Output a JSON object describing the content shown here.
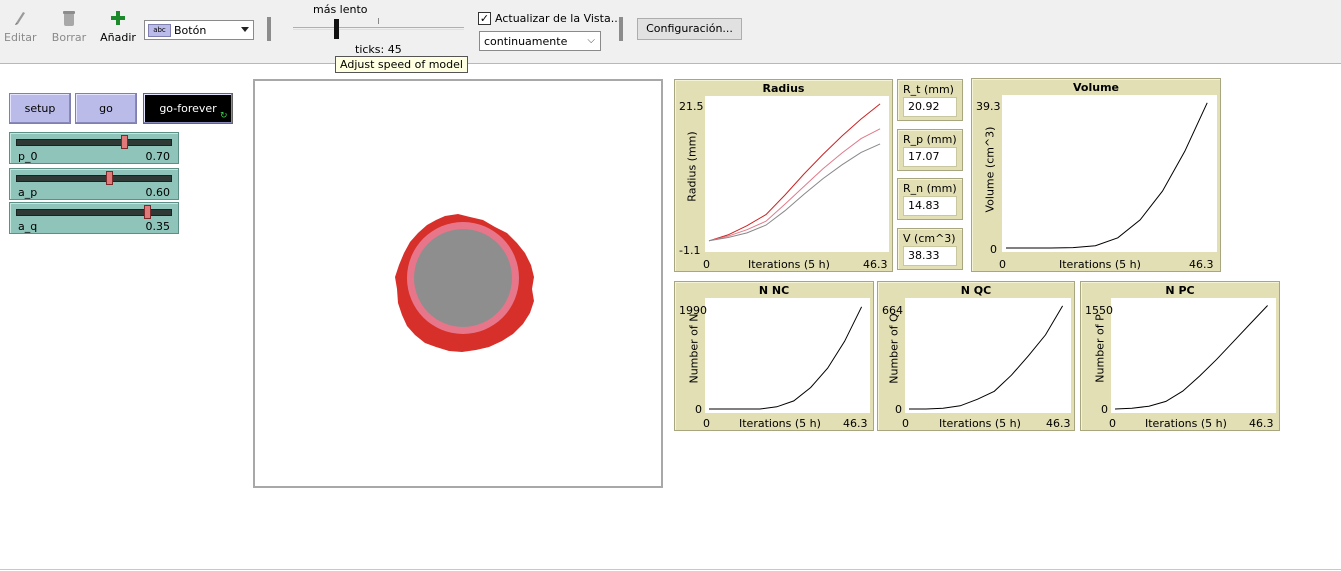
{
  "toolbar": {
    "edit_label": "Editar",
    "delete_label": "Borrar",
    "add_label": "Añadir",
    "widget_type": "Botón",
    "speed_top_label": "más lento",
    "ticks_label": "ticks: 45",
    "speed_level": 0.25,
    "speed_tooltip": "Adjust speed of model",
    "update_view_label": "Actualizar de la Vista...",
    "update_view_checked": true,
    "update_mode": "continuamente",
    "settings_label": "Configuración..."
  },
  "buttons": {
    "setup": "setup",
    "go": "go",
    "go_forever": "go-forever"
  },
  "sliders": [
    {
      "name": "p_0",
      "value": "0.70",
      "level": 0.7
    },
    {
      "name": "a_p",
      "value": "0.60",
      "level": 0.6
    },
    {
      "name": "a_q",
      "value": "0.35",
      "level": 0.85
    }
  ],
  "view": {
    "colors": {
      "outer": "#d7302a",
      "middle": "#e8768a",
      "core": "#8e8e8e"
    }
  },
  "monitors": [
    {
      "name": "R_t (mm)",
      "value": "20.92"
    },
    {
      "name": "R_p (mm)",
      "value": "17.07"
    },
    {
      "name": "R_n (mm)",
      "value": "14.83"
    },
    {
      "name": "V (cm^3)",
      "value": "38.33"
    }
  ],
  "plots": {
    "radius": {
      "title": "Radius",
      "ylabel": "Radius  (mm)",
      "xlabel": "Iterations (5 h)",
      "ymin": "-1.1",
      "ymax": "21.5",
      "xmin": "0",
      "xmax": "46.3"
    },
    "volume": {
      "title": "Volume",
      "ylabel": "Volume  (cm^3)",
      "xlabel": "Iterations (5 h)",
      "ymin": "0",
      "ymax": "39.3",
      "xmin": "0",
      "xmax": "46.3"
    },
    "nnc": {
      "title": "N NC",
      "ylabel": "Number of N",
      "xlabel": "Iterations (5 h)",
      "ymin": "0",
      "ymax": "1990",
      "xmin": "0",
      "xmax": "46.3"
    },
    "nqc": {
      "title": "N QC",
      "ylabel": "Number of Q",
      "xlabel": "Iterations (5 h)",
      "ymin": "0",
      "ymax": "664",
      "xmin": "0",
      "xmax": "46.3"
    },
    "npc": {
      "title": "N PC",
      "ylabel": "Number of P",
      "xlabel": "Iterations (5 h)",
      "ymin": "0",
      "ymax": "1550",
      "xmin": "0",
      "xmax": "46.3"
    }
  },
  "chart_data": [
    {
      "type": "line",
      "title": "Radius",
      "xlabel": "Iterations (5 h)",
      "ylabel": "Radius  (mm)",
      "xlim": [
        0,
        46.3
      ],
      "ylim": [
        -1.1,
        21.5
      ],
      "x": [
        0,
        5,
        10,
        15,
        20,
        25,
        30,
        35,
        40,
        45
      ],
      "series": [
        {
          "color": "#cc2222",
          "values": [
            0.0,
            0.9,
            2.3,
            4.0,
            7.0,
            10.2,
            13.2,
            16.0,
            18.6,
            20.9
          ]
        },
        {
          "color": "#e07a8a",
          "values": [
            0.0,
            0.7,
            1.7,
            3.0,
            5.6,
            8.3,
            11.0,
            13.4,
            15.6,
            17.1
          ]
        },
        {
          "color": "#888888",
          "values": [
            0.0,
            0.5,
            1.2,
            2.4,
            4.6,
            7.1,
            9.5,
            11.6,
            13.5,
            14.8
          ]
        }
      ]
    },
    {
      "type": "line",
      "title": "Volume",
      "xlabel": "Iterations (5 h)",
      "ylabel": "Volume  (cm^3)",
      "xlim": [
        0,
        46.3
      ],
      "ylim": [
        0,
        39.3
      ],
      "x": [
        0,
        5,
        10,
        15,
        20,
        25,
        30,
        35,
        40,
        45
      ],
      "series": [
        {
          "color": "#000000",
          "values": [
            0,
            0,
            0,
            0.1,
            0.6,
            2.7,
            7.4,
            15.0,
            25.5,
            38.3
          ]
        }
      ]
    },
    {
      "type": "line",
      "title": "N NC",
      "xlabel": "Iterations (5 h)",
      "ylabel": "Number of N",
      "xlim": [
        0,
        46.3
      ],
      "ylim": [
        0,
        1990
      ],
      "x": [
        0,
        5,
        10,
        15,
        20,
        25,
        30,
        35,
        40,
        45
      ],
      "series": [
        {
          "color": "#000000",
          "values": [
            0,
            0,
            0,
            0,
            40,
            150,
            400,
            760,
            1260,
            1900
          ]
        }
      ]
    },
    {
      "type": "line",
      "title": "N QC",
      "xlabel": "Iterations (5 h)",
      "ylabel": "Number of Q",
      "xlim": [
        0,
        46.3
      ],
      "ylim": [
        0,
        664
      ],
      "x": [
        0,
        5,
        10,
        15,
        20,
        25,
        30,
        35,
        40,
        45
      ],
      "series": [
        {
          "color": "#000000",
          "values": [
            0,
            0,
            5,
            20,
            60,
            110,
            210,
            330,
            460,
            640
          ]
        }
      ]
    },
    {
      "type": "line",
      "title": "N PC",
      "xlabel": "Iterations (5 h)",
      "ylabel": "Number of P",
      "xlim": [
        0,
        46.3
      ],
      "ylim": [
        0,
        1550
      ],
      "x": [
        0,
        5,
        10,
        15,
        20,
        25,
        30,
        35,
        40,
        45
      ],
      "series": [
        {
          "color": "#000000",
          "values": [
            0,
            10,
            40,
            110,
            260,
            480,
            720,
            980,
            1240,
            1500
          ]
        }
      ]
    }
  ]
}
